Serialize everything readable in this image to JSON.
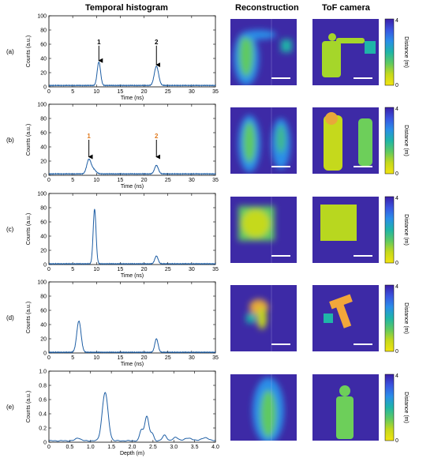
{
  "headers": {
    "histogram": "Temporal histogram",
    "reconstruction": "Reconstruction",
    "tof": "ToF camera"
  },
  "colorbar": {
    "label": "Distance (m)",
    "ticks": [
      "4",
      "0"
    ],
    "colors": [
      "#3b1fa8",
      "#3a55e0",
      "#2a8ee8",
      "#1fb5a8",
      "#5ec962",
      "#c5d91c",
      "#f2e411"
    ]
  },
  "chart_data": [
    {
      "type": "line",
      "panel": "(a)",
      "xlabel": "Time (ns)",
      "ylabel": "Counts (a.u.)",
      "xlim": [
        0,
        35
      ],
      "ylim": [
        0,
        100
      ],
      "xticks": [
        0,
        5,
        10,
        15,
        20,
        25,
        30,
        35
      ],
      "yticks": [
        0,
        20,
        40,
        60,
        80,
        100
      ],
      "baseline": 2,
      "peaks": [
        {
          "x": 10.5,
          "height": 33,
          "width": 0.35
        },
        {
          "x": 22.6,
          "height": 27,
          "width": 0.45
        }
      ],
      "annotations": [
        {
          "text": "1",
          "x": 10.5,
          "tip": 37,
          "tail": 58,
          "color": "#000000"
        },
        {
          "text": "2",
          "x": 22.6,
          "tip": 31,
          "tail": 58,
          "color": "#000000"
        }
      ]
    },
    {
      "type": "line",
      "panel": "(b)",
      "xlabel": "Time (ns)",
      "ylabel": "Counts (a.u.)",
      "xlim": [
        0,
        35
      ],
      "ylim": [
        0,
        100
      ],
      "xticks": [
        0,
        5,
        10,
        15,
        20,
        25,
        30,
        35
      ],
      "yticks": [
        0,
        20,
        40,
        60,
        80,
        100
      ],
      "baseline": 2,
      "peaks": [
        {
          "x": 8.4,
          "height": 20,
          "width": 0.45
        },
        {
          "x": 9.4,
          "height": 6,
          "width": 0.5
        },
        {
          "x": 22.6,
          "height": 12,
          "width": 0.4
        }
      ],
      "annotations": [
        {
          "text": "1",
          "x": 8.4,
          "tip": 26,
          "tail": 50,
          "color": "#e07a1f"
        },
        {
          "text": "2",
          "x": 22.6,
          "tip": 26,
          "tail": 50,
          "color": "#e07a1f"
        }
      ]
    },
    {
      "type": "line",
      "panel": "(c)",
      "xlabel": "Time (ns)",
      "ylabel": "Counts (a.u.)",
      "xlim": [
        0,
        35
      ],
      "ylim": [
        0,
        100
      ],
      "xticks": [
        0,
        5,
        10,
        15,
        20,
        25,
        30,
        35
      ],
      "yticks": [
        0,
        20,
        40,
        60,
        80,
        100
      ],
      "baseline": 1,
      "peaks": [
        {
          "x": 9.6,
          "height": 77,
          "width": 0.3
        },
        {
          "x": 22.6,
          "height": 11,
          "width": 0.35
        }
      ],
      "annotations": []
    },
    {
      "type": "line",
      "panel": "(d)",
      "xlabel": "Time (ns)",
      "ylabel": "Counts (a.u.)",
      "xlim": [
        0,
        35
      ],
      "ylim": [
        0,
        100
      ],
      "xticks": [
        0,
        5,
        10,
        15,
        20,
        25,
        30,
        35
      ],
      "yticks": [
        0,
        20,
        40,
        60,
        80,
        100
      ],
      "baseline": 1,
      "peaks": [
        {
          "x": 6.3,
          "height": 44,
          "width": 0.45
        },
        {
          "x": 22.6,
          "height": 19,
          "width": 0.35
        }
      ],
      "annotations": []
    },
    {
      "type": "line",
      "panel": "(e)",
      "xlabel": "Depth (m)",
      "ylabel": "Counts (a.u.)",
      "xlim": [
        0,
        4.0
      ],
      "ylim": [
        0,
        1.0
      ],
      "xticks": [
        0,
        0.5,
        1.0,
        1.5,
        2.0,
        2.5,
        3.0,
        3.5,
        4.0
      ],
      "xtick_labels": [
        "0",
        "0.5",
        "1.0",
        "1.5",
        "2.0",
        "2.5",
        "3.0",
        "3.5",
        "4.0"
      ],
      "yticks": [
        0,
        0.2,
        0.4,
        0.6,
        0.8,
        1.0
      ],
      "ytick_labels": [
        "0",
        "0.2",
        "0.4",
        "0.6",
        "0.8",
        "1.0"
      ],
      "baseline": 0.02,
      "peaks": [
        {
          "x": 0.7,
          "height": 0.04,
          "width": 0.06
        },
        {
          "x": 1.35,
          "height": 0.68,
          "width": 0.07
        },
        {
          "x": 2.22,
          "height": 0.15,
          "width": 0.04
        },
        {
          "x": 2.35,
          "height": 0.35,
          "width": 0.05
        },
        {
          "x": 2.48,
          "height": 0.1,
          "width": 0.04
        },
        {
          "x": 2.78,
          "height": 0.08,
          "width": 0.05
        },
        {
          "x": 3.05,
          "height": 0.05,
          "width": 0.06
        },
        {
          "x": 3.35,
          "height": 0.04,
          "width": 0.08
        },
        {
          "x": 3.75,
          "height": 0.04,
          "width": 0.1
        }
      ],
      "annotations": []
    }
  ]
}
